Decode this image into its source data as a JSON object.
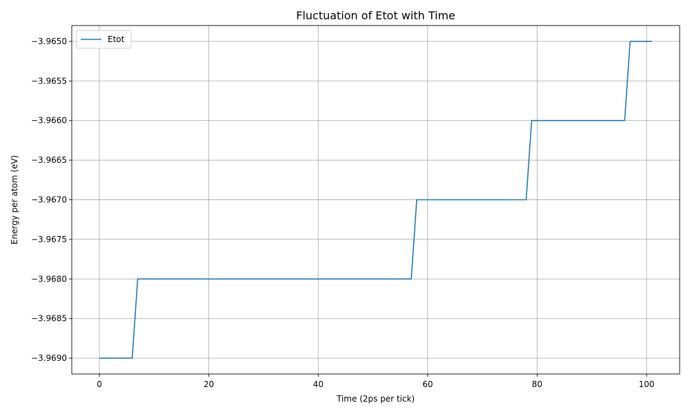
{
  "chart_data": {
    "type": "line",
    "title": "Fluctuation of Etot with Time",
    "xlabel": "Time (2ps per tick)",
    "ylabel": "Energy per atom (eV)",
    "xlim": [
      -5.05,
      106.05
    ],
    "ylim": [
      -3.9692,
      -3.9648
    ],
    "xticks": [
      0,
      20,
      40,
      60,
      80,
      100
    ],
    "xtick_labels": [
      "0",
      "20",
      "40",
      "60",
      "80",
      "100"
    ],
    "yticks": [
      -3.969,
      -3.9685,
      -3.968,
      -3.9675,
      -3.967,
      -3.9665,
      -3.966,
      -3.9655,
      -3.965
    ],
    "ytick_labels": [
      "−3.9690",
      "−3.9685",
      "−3.9680",
      "−3.9675",
      "−3.9670",
      "−3.9665",
      "−3.9660",
      "−3.9655",
      "−3.9650"
    ],
    "grid": true,
    "legend_position": "top-left",
    "colors": {
      "Etot": "#1f77b4"
    },
    "series": [
      {
        "name": "Etot",
        "x": [
          0,
          6,
          7,
          57,
          58,
          78,
          79,
          96,
          97,
          101
        ],
        "y": [
          -3.969,
          -3.969,
          -3.968,
          -3.968,
          -3.967,
          -3.967,
          -3.966,
          -3.966,
          -3.965,
          -3.965
        ]
      }
    ]
  }
}
